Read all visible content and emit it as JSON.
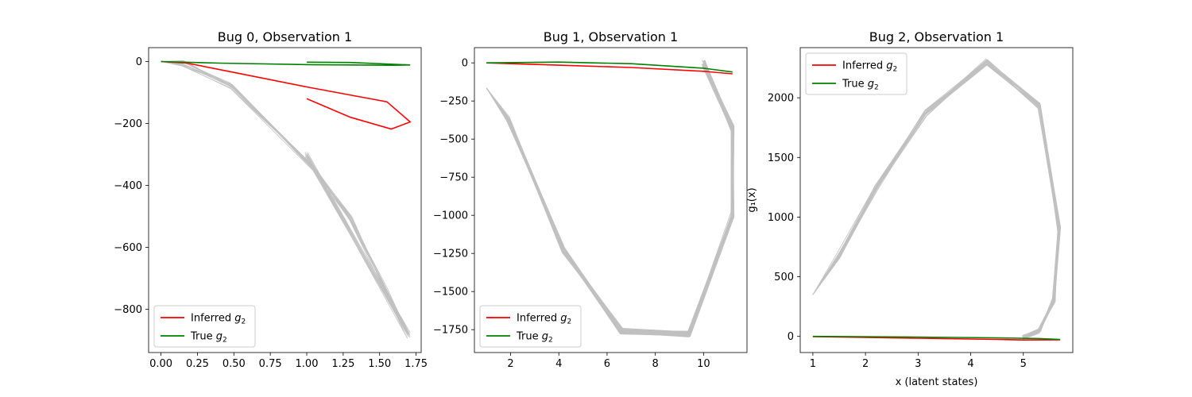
{
  "chart_data": [
    {
      "type": "line",
      "title": "Bug 0, Observation 1",
      "xlabel": "",
      "ylabel": "",
      "xlim": [
        -0.085,
        1.785
      ],
      "ylim": [
        -940,
        45
      ],
      "xticks": [
        0.0,
        0.25,
        0.5,
        0.75,
        1.0,
        1.25,
        1.5,
        1.75
      ],
      "xtick_labels": [
        "0.00",
        "0.25",
        "0.50",
        "0.75",
        "1.00",
        "1.25",
        "1.50",
        "1.75"
      ],
      "yticks": [
        0,
        -200,
        -400,
        -600,
        -800
      ],
      "ytick_labels": [
        "0",
        "−200",
        "−400",
        "−600",
        "−800"
      ],
      "legend": {
        "position": "lower left",
        "entries": [
          {
            "label": "Inferred",
            "sub": "2",
            "color": "#ff0000"
          },
          {
            "label": "True",
            "sub": "2",
            "color": "#008000"
          }
        ]
      },
      "samples": {
        "color": "#c0c0c0",
        "count": 12,
        "points": [
          [
            0.0,
            0
          ],
          [
            0.15,
            -5
          ],
          [
            0.48,
            -78
          ],
          [
            1.05,
            -350
          ],
          [
            1.3,
            -510
          ],
          [
            1.55,
            -740
          ],
          [
            1.7,
            -885
          ],
          [
            1.0,
            -300
          ]
        ]
      },
      "series": [
        {
          "name": "Inferred",
          "color": "#ff0000",
          "points": [
            [
              0.0,
              0
            ],
            [
              0.18,
              -5
            ],
            [
              0.5,
              -35
            ],
            [
              1.0,
              -82
            ],
            [
              1.55,
              -130
            ],
            [
              1.71,
              -195
            ],
            [
              1.58,
              -218
            ],
            [
              1.3,
              -180
            ],
            [
              1.0,
              -120
            ]
          ]
        },
        {
          "name": "True",
          "color": "#008000",
          "points": [
            [
              0.0,
              0
            ],
            [
              0.4,
              -5
            ],
            [
              1.0,
              -10
            ],
            [
              1.6,
              -12
            ],
            [
              1.71,
              -11
            ],
            [
              1.3,
              -3
            ],
            [
              1.0,
              -2
            ]
          ]
        }
      ]
    },
    {
      "type": "line",
      "title": "Bug 1, Observation 1",
      "xlabel": "",
      "ylabel": "",
      "xlim": [
        0.5,
        11.8
      ],
      "ylim": [
        -1900,
        100
      ],
      "xticks": [
        2,
        4,
        6,
        8,
        10
      ],
      "xtick_labels": [
        "2",
        "4",
        "6",
        "8",
        "10"
      ],
      "yticks": [
        0,
        -250,
        -500,
        -750,
        -1000,
        -1250,
        -1500,
        -1750
      ],
      "ytick_labels": [
        "0",
        "−250",
        "−500",
        "−750",
        "−1000",
        "−1250",
        "−1500",
        "−1750"
      ],
      "legend": {
        "position": "lower left",
        "entries": [
          {
            "label": "Inferred",
            "sub": "2",
            "color": "#ff0000"
          },
          {
            "label": "True",
            "sub": "2",
            "color": "#008000"
          }
        ]
      },
      "samples": {
        "color": "#c0c0c0",
        "count": 40,
        "points": [
          [
            1.0,
            -165
          ],
          [
            1.9,
            -370
          ],
          [
            4.2,
            -1230
          ],
          [
            6.6,
            -1760
          ],
          [
            9.4,
            -1780
          ],
          [
            11.2,
            -1000
          ],
          [
            11.2,
            -430
          ],
          [
            10.0,
            0
          ]
        ]
      },
      "series": [
        {
          "name": "Inferred",
          "color": "#ff0000",
          "points": [
            [
              1.0,
              0
            ],
            [
              4.0,
              -15
            ],
            [
              7.0,
              -30
            ],
            [
              10.0,
              -55
            ],
            [
              11.2,
              -72
            ]
          ]
        },
        {
          "name": "True",
          "color": "#008000",
          "points": [
            [
              1.0,
              0
            ],
            [
              4.0,
              5
            ],
            [
              7.0,
              -5
            ],
            [
              10.0,
              -35
            ],
            [
              11.2,
              -60
            ]
          ]
        }
      ]
    },
    {
      "type": "line",
      "title": "Bug 2, Observation 1",
      "xlabel": "x (latent states)",
      "ylabel": "g₁(x)",
      "xlim": [
        0.76,
        5.94
      ],
      "ylim": [
        -135,
        2420
      ],
      "xticks": [
        1,
        2,
        3,
        4,
        5
      ],
      "xtick_labels": [
        "1",
        "2",
        "3",
        "4",
        "5"
      ],
      "yticks": [
        0,
        500,
        1000,
        1500,
        2000
      ],
      "ytick_labels": [
        "0",
        "500",
        "1000",
        "1500",
        "2000"
      ],
      "legend": {
        "position": "upper left",
        "entries": [
          {
            "label": "Inferred",
            "sub": "2",
            "color": "#ff0000"
          },
          {
            "label": "True",
            "sub": "2",
            "color": "#008000"
          }
        ]
      },
      "samples": {
        "color": "#c0c0c0",
        "count": 20,
        "points": [
          [
            1.0,
            350
          ],
          [
            1.5,
            680
          ],
          [
            2.2,
            1250
          ],
          [
            3.15,
            1870
          ],
          [
            4.3,
            2300
          ],
          [
            5.3,
            1930
          ],
          [
            5.68,
            900
          ],
          [
            5.58,
            300
          ],
          [
            5.3,
            50
          ],
          [
            5.0,
            0
          ]
        ]
      },
      "series": [
        {
          "name": "Inferred",
          "color": "#ff0000",
          "points": [
            [
              1.0,
              -2
            ],
            [
              3.0,
              -15
            ],
            [
              4.5,
              -25
            ],
            [
              5.0,
              -30
            ],
            [
              5.7,
              -28
            ]
          ]
        },
        {
          "name": "True",
          "color": "#008000",
          "points": [
            [
              1.0,
              0
            ],
            [
              3.0,
              -5
            ],
            [
              4.5,
              -12
            ],
            [
              5.3,
              -18
            ],
            [
              5.7,
              -25
            ]
          ]
        }
      ]
    }
  ]
}
